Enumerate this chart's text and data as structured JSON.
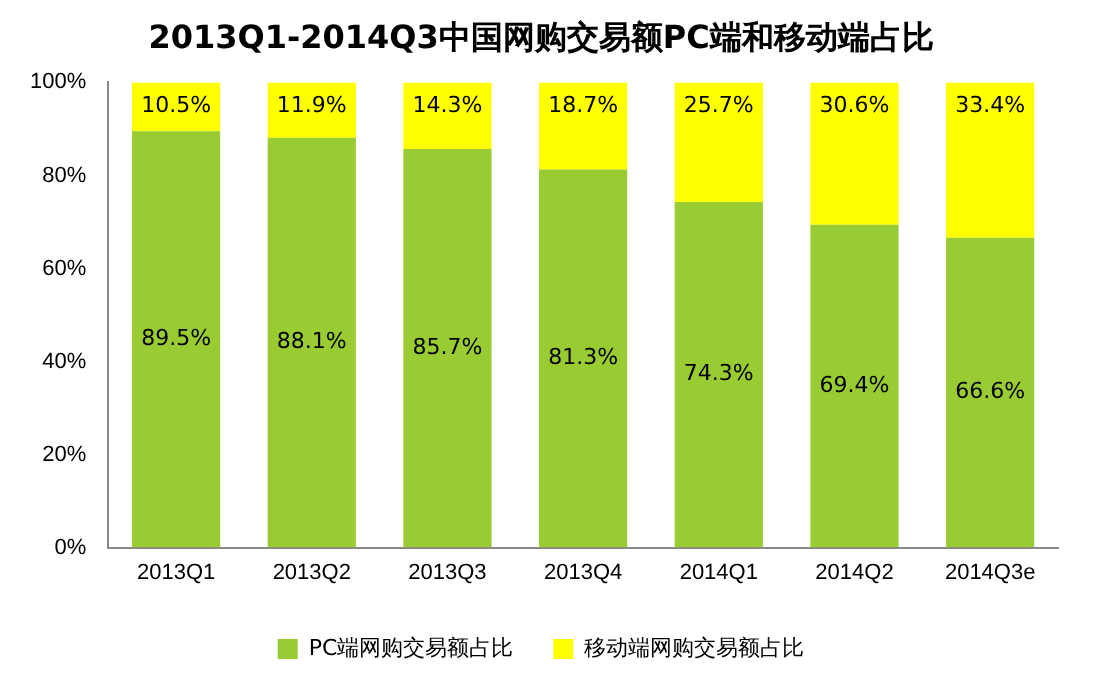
{
  "chart_data": {
    "type": "bar",
    "title": "2013Q1-2014Q3中国网购交易额PC端和移动端占比",
    "categories": [
      "2013Q1",
      "2013Q2",
      "2013Q3",
      "2013Q4",
      "2014Q1",
      "2014Q2",
      "2014Q3e"
    ],
    "stacked": true,
    "ylim": [
      0,
      100
    ],
    "yticks": [
      {
        "value": 0,
        "label": "0%"
      },
      {
        "value": 20,
        "label": "20%"
      },
      {
        "value": 40,
        "label": "40%"
      },
      {
        "value": 60,
        "label": "60%"
      },
      {
        "value": 80,
        "label": "80%"
      },
      {
        "value": 100,
        "label": "100%"
      }
    ],
    "legend": "bottom",
    "series": [
      {
        "name": "PC端网购交易额占比",
        "color": "#99cc33",
        "values": [
          89.5,
          88.1,
          85.7,
          81.3,
          74.3,
          69.4,
          66.6
        ],
        "value_labels": [
          "89.5%",
          "88.1%",
          "85.7%",
          "81.3%",
          "74.3%",
          "69.4%",
          "66.6%"
        ]
      },
      {
        "name": "移动端网购交易额占比",
        "color": "#ffff00",
        "values": [
          10.5,
          11.9,
          14.3,
          18.7,
          25.7,
          30.6,
          33.4
        ],
        "value_labels": [
          "10.5%",
          "11.9%",
          "14.3%",
          "18.7%",
          "25.7%",
          "30.6%",
          "33.4%"
        ]
      }
    ]
  }
}
